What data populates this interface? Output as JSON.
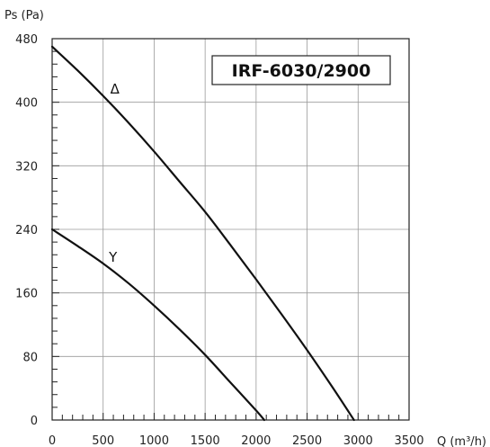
{
  "chart_data": {
    "type": "line",
    "title": "IRF-6030/2900",
    "xlabel": "Q (m³/h)",
    "ylabel": "Ps (Pa)",
    "xlim": [
      0,
      3500
    ],
    "ylim": [
      0,
      480
    ],
    "xticks": [
      0,
      500,
      1000,
      1500,
      2000,
      2500,
      3000,
      3500
    ],
    "yticks": [
      0,
      80,
      160,
      240,
      320,
      400,
      480
    ],
    "grid": true,
    "series": [
      {
        "name": "Δ",
        "x": [
          0,
          250,
          500,
          750,
          1000,
          1250,
          1500,
          1750,
          2000,
          2250,
          2500,
          2750,
          2960
        ],
        "y": [
          470,
          440,
          408,
          374,
          338,
          300,
          262,
          220,
          177,
          133,
          88,
          41,
          0
        ]
      },
      {
        "name": "Y",
        "x": [
          0,
          250,
          500,
          750,
          1000,
          1250,
          1500,
          1750,
          2000,
          2080
        ],
        "y": [
          240,
          219,
          197,
          172,
          144,
          114,
          82,
          47,
          12,
          0
        ]
      }
    ]
  }
}
